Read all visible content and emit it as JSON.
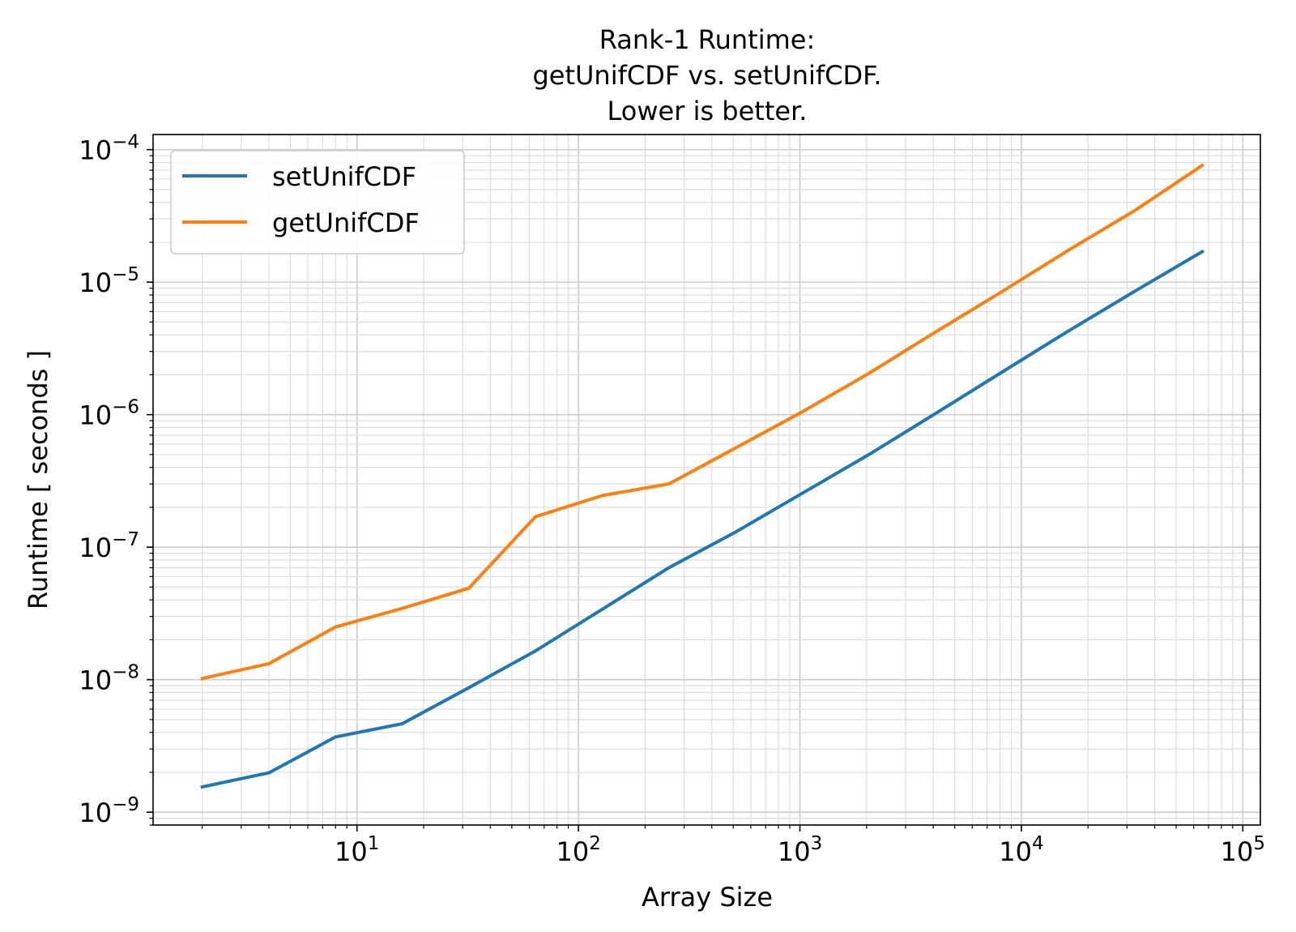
{
  "chart_data": {
    "type": "line",
    "title_lines": [
      "Rank-1 Runtime:",
      "getUnifCDF vs. setUnifCDF.",
      "Lower is better."
    ],
    "xlabel": "Array Size",
    "ylabel": "Runtime [ seconds ]",
    "xscale": "log",
    "yscale": "log",
    "xlim": [
      1.2,
      120000
    ],
    "ylim": [
      8e-10,
      0.00013
    ],
    "grid": true,
    "legend_position": "top-left",
    "x_ticks": [
      {
        "base": "10",
        "exp": "1",
        "value": 10
      },
      {
        "base": "10",
        "exp": "2",
        "value": 100
      },
      {
        "base": "10",
        "exp": "3",
        "value": 1000
      },
      {
        "base": "10",
        "exp": "4",
        "value": 10000
      },
      {
        "base": "10",
        "exp": "5",
        "value": 100000
      }
    ],
    "y_ticks": [
      {
        "base": "10",
        "exp": "−9",
        "value": 1e-09
      },
      {
        "base": "10",
        "exp": "−8",
        "value": 1e-08
      },
      {
        "base": "10",
        "exp": "−7",
        "value": 1e-07
      },
      {
        "base": "10",
        "exp": "−6",
        "value": 1e-06
      },
      {
        "base": "10",
        "exp": "−5",
        "value": 1e-05
      },
      {
        "base": "10",
        "exp": "−4",
        "value": 0.0001
      }
    ],
    "x": [
      2,
      4,
      8,
      16,
      32,
      64,
      128,
      256,
      512,
      1024,
      2048,
      4096,
      8192,
      16384,
      32768,
      65536
    ],
    "series": [
      {
        "name": "setUnifCDF",
        "color": "#1f77b4",
        "values": [
          1.55e-09,
          1.98e-09,
          3.7e-09,
          4.65e-09,
          8.7e-09,
          1.65e-08,
          3.4e-08,
          7e-08,
          1.3e-07,
          2.55e-07,
          5e-07,
          1.02e-06,
          2.1e-06,
          4.3e-06,
          8.6e-06,
          1.7e-05
        ]
      },
      {
        "name": "getUnifCDF",
        "color": "#ff7f0e",
        "values": [
          1.02e-08,
          1.32e-08,
          2.5e-08,
          3.45e-08,
          4.9e-08,
          1.7e-07,
          2.45e-07,
          3e-07,
          5.6e-07,
          1.05e-06,
          2.05e-06,
          4.2e-06,
          8.5e-06,
          1.75e-05,
          3.5e-05,
          7.6e-05
        ]
      }
    ]
  }
}
